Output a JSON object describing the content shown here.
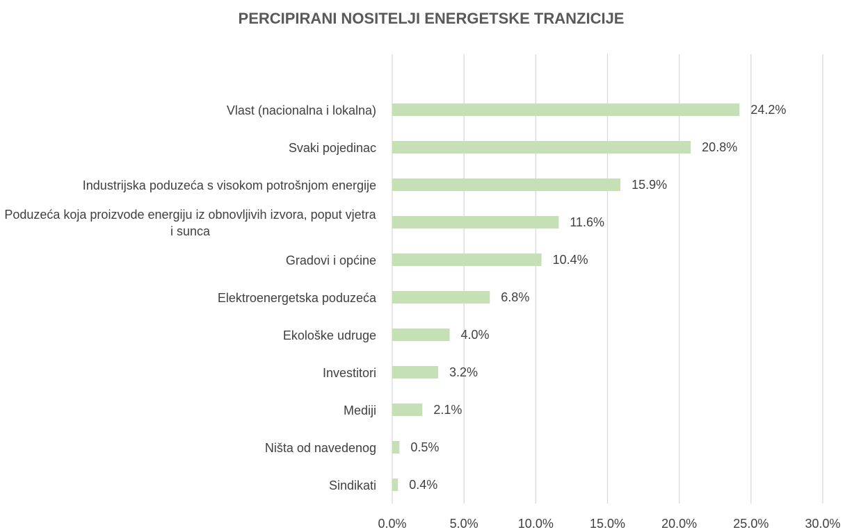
{
  "chart_data": {
    "type": "bar",
    "orientation": "horizontal",
    "title": "PERCIPIRANI NOSITELJI ENERGETSKE TRANZICIJE",
    "categories": [
      "Vlast (nacionalna i lokalna)",
      "Svaki pojedinac",
      "Industrijska poduzeća s visokom potrošnjom energije",
      "Poduzeća koja proizvode energiju iz obnovljivih izvora, poput vjetra i sunca",
      "Gradovi i općine",
      "Elektroenergetska poduzeća",
      "Ekološke udruge",
      "Investitori",
      "Mediji",
      "Ništa od navedenog",
      "Sindikati"
    ],
    "values": [
      24.2,
      20.8,
      15.9,
      11.6,
      10.4,
      6.8,
      4.0,
      3.2,
      2.1,
      0.5,
      0.4
    ],
    "value_labels": [
      "24.2%",
      "20.8%",
      "15.9%",
      "11.6%",
      "10.4%",
      "6.8%",
      "4.0%",
      "3.2%",
      "2.1%",
      "0.5%",
      "0.4%"
    ],
    "color": "#c5e0b4",
    "xlim": [
      0,
      30
    ],
    "xticks": [
      {
        "value": 0,
        "label": "0.0%"
      },
      {
        "value": 5,
        "label": "5.0%"
      },
      {
        "value": 10,
        "label": "10.0%"
      },
      {
        "value": 15,
        "label": "15.0%"
      },
      {
        "value": 20,
        "label": "20.0%"
      },
      {
        "value": 25,
        "label": "25.0%"
      },
      {
        "value": 30,
        "label": "30.0%"
      }
    ],
    "grid": true
  }
}
